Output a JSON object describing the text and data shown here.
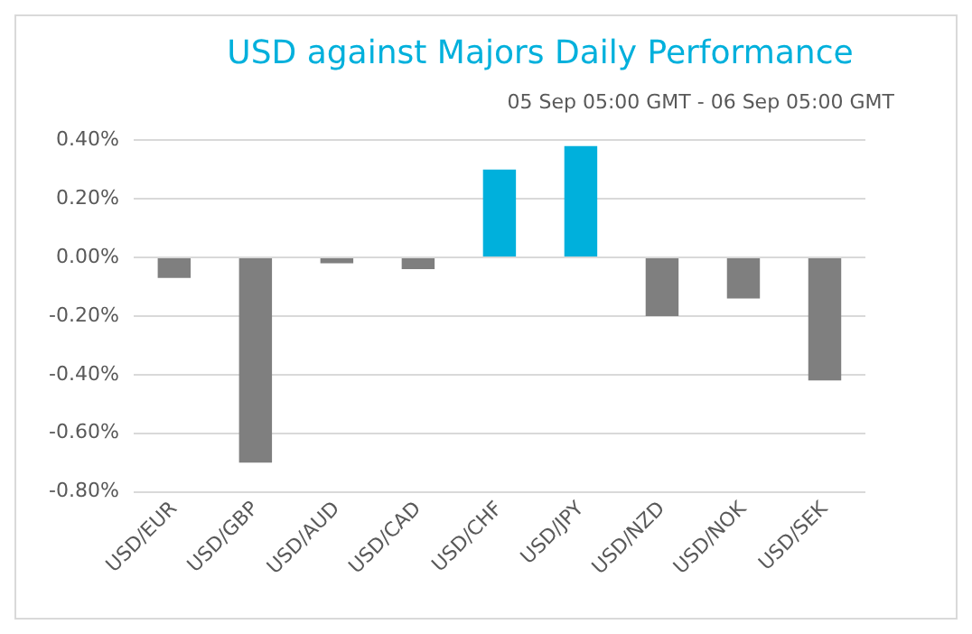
{
  "chart_data": {
    "type": "bar",
    "title": "USD against Majors Daily Performance",
    "subtitle": "05 Sep 05:00 GMT - 06 Sep 05:00 GMT",
    "categories": [
      "USD/EUR",
      "USD/GBP",
      "USD/AUD",
      "USD/CAD",
      "USD/CHF",
      "USD/JPY",
      "USD/NZD",
      "USD/NOK",
      "USD/SEK"
    ],
    "values": [
      -0.07,
      -0.7,
      -0.02,
      -0.04,
      0.3,
      0.38,
      -0.2,
      -0.14,
      -0.42
    ],
    "colors": [
      "#7f7f7f",
      "#7f7f7f",
      "#7f7f7f",
      "#7f7f7f",
      "#00b0dc",
      "#00b0dc",
      "#7f7f7f",
      "#7f7f7f",
      "#7f7f7f"
    ],
    "ylim": [
      -0.8,
      0.4
    ],
    "yticks": [
      {
        "value": -0.8,
        "label": "-0.80%"
      },
      {
        "value": -0.6,
        "label": "-0.60%"
      },
      {
        "value": -0.4,
        "label": "-0.40%"
      },
      {
        "value": -0.2,
        "label": "-0.20%"
      },
      {
        "value": 0,
        "label": "0.00%"
      },
      {
        "value": 0.2,
        "label": "0.20%"
      },
      {
        "value": 0.4,
        "label": "0.40%"
      }
    ],
    "grid": "y",
    "legend": false
  }
}
